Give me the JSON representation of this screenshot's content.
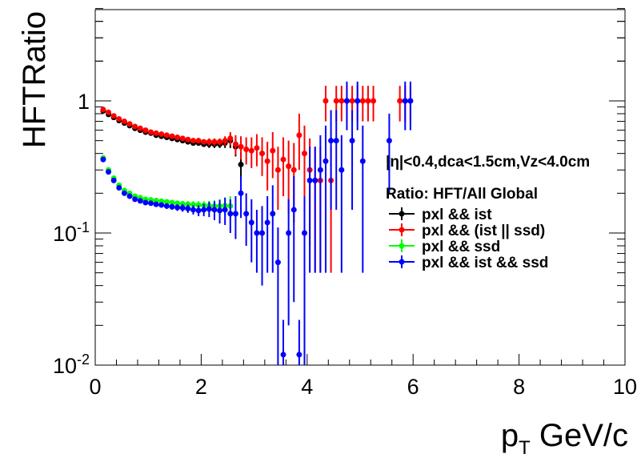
{
  "chart_data": {
    "type": "scatter",
    "title": "",
    "xlabel": "p",
    "xlabel_sub": "T",
    "xlabel_rest": " GeV/c",
    "ylabel": "HFTRatio",
    "xlim": [
      0,
      10
    ],
    "ylim": [
      0.01,
      5
    ],
    "yscale": "log",
    "grid": false,
    "x_ticks": [
      "0",
      "2",
      "4",
      "6",
      "8",
      "10"
    ],
    "y_ticks": [
      {
        "base": "10",
        "exp": "-2",
        "value": 0.01
      },
      {
        "base": "10",
        "exp": "-1",
        "value": 0.1
      },
      {
        "base": "1",
        "exp": "",
        "value": 1
      }
    ],
    "annotation": "|η|<0.4,dca<1.5cm,Vz<4.0cm",
    "legend_title": "Ratio: HFT/All Global",
    "legend_position": "right",
    "series": [
      {
        "name": "pxl && ist",
        "color": "#000000",
        "x": [
          0.15,
          0.25,
          0.35,
          0.45,
          0.55,
          0.65,
          0.75,
          0.85,
          0.95,
          1.05,
          1.15,
          1.25,
          1.35,
          1.45,
          1.55,
          1.65,
          1.75,
          1.85,
          1.95,
          2.05,
          2.15,
          2.25,
          2.35,
          2.45,
          2.55,
          2.65,
          2.75
        ],
        "y": [
          0.84,
          0.79,
          0.75,
          0.71,
          0.68,
          0.65,
          0.62,
          0.6,
          0.58,
          0.57,
          0.55,
          0.54,
          0.53,
          0.52,
          0.51,
          0.5,
          0.49,
          0.48,
          0.48,
          0.47,
          0.47,
          0.47,
          0.47,
          0.48,
          0.5,
          0.45,
          0.33
        ],
        "err": [
          0.02,
          0.02,
          0.02,
          0.02,
          0.02,
          0.02,
          0.02,
          0.02,
          0.02,
          0.02,
          0.02,
          0.02,
          0.02,
          0.02,
          0.02,
          0.02,
          0.02,
          0.02,
          0.02,
          0.02,
          0.03,
          0.03,
          0.03,
          0.04,
          0.06,
          0.07,
          0.08
        ]
      },
      {
        "name": "pxl && (ist || ssd)",
        "color": "#ff0000",
        "x": [
          0.15,
          0.25,
          0.35,
          0.45,
          0.55,
          0.65,
          0.75,
          0.85,
          0.95,
          1.05,
          1.15,
          1.25,
          1.35,
          1.45,
          1.55,
          1.65,
          1.75,
          1.85,
          1.95,
          2.05,
          2.15,
          2.25,
          2.35,
          2.45,
          2.55,
          2.65,
          2.75,
          2.85,
          2.95,
          3.05,
          3.15,
          3.25,
          3.35,
          3.45,
          3.55,
          3.65,
          3.75,
          3.85,
          3.95,
          4.05,
          4.15,
          4.25,
          4.35,
          4.45,
          4.55,
          4.65,
          4.75,
          4.85,
          4.95,
          5.05,
          5.15,
          5.25,
          5.75,
          5.85,
          5.95
        ],
        "y": [
          0.86,
          0.82,
          0.77,
          0.73,
          0.7,
          0.67,
          0.64,
          0.62,
          0.6,
          0.58,
          0.57,
          0.56,
          0.55,
          0.54,
          0.53,
          0.52,
          0.51,
          0.5,
          0.5,
          0.49,
          0.49,
          0.49,
          0.49,
          0.5,
          0.52,
          0.47,
          0.45,
          0.43,
          0.42,
          0.44,
          0.4,
          0.35,
          0.42,
          0.3,
          0.36,
          0.32,
          0.3,
          0.55,
          0.4,
          0.3,
          0.25,
          0.25,
          1.0,
          0.25,
          1.0,
          1.0,
          1.0,
          1.0,
          1.0,
          1.0,
          1.0,
          1.0,
          1.0,
          1.0,
          1.0
        ],
        "err": [
          0.02,
          0.02,
          0.02,
          0.02,
          0.02,
          0.02,
          0.02,
          0.02,
          0.02,
          0.02,
          0.02,
          0.02,
          0.02,
          0.02,
          0.02,
          0.02,
          0.02,
          0.02,
          0.02,
          0.02,
          0.03,
          0.03,
          0.03,
          0.04,
          0.06,
          0.08,
          0.09,
          0.1,
          0.11,
          0.12,
          0.13,
          0.14,
          0.16,
          0.15,
          0.17,
          0.18,
          0.18,
          0.25,
          0.25,
          0.22,
          0.2,
          0.2,
          0.3,
          0.2,
          0.3,
          0.3,
          0.3,
          0.3,
          0.3,
          0.3,
          0.3,
          0.3,
          0.3,
          0.3,
          0.3
        ]
      },
      {
        "name": "pxl && ssd",
        "color": "#00ff00",
        "x": [
          0.15,
          0.25,
          0.35,
          0.45,
          0.55,
          0.65,
          0.75,
          0.85,
          0.95,
          1.05,
          1.15,
          1.25,
          1.35,
          1.45,
          1.55,
          1.65,
          1.75,
          1.85,
          1.95,
          2.05,
          2.15,
          2.25,
          2.35,
          2.45,
          2.55
        ],
        "y": [
          0.37,
          0.3,
          0.26,
          0.23,
          0.21,
          0.2,
          0.19,
          0.185,
          0.18,
          0.178,
          0.176,
          0.174,
          0.172,
          0.17,
          0.168,
          0.166,
          0.165,
          0.164,
          0.163,
          0.162,
          0.161,
          0.16,
          0.16,
          0.161,
          0.16
        ],
        "err": [
          0.015,
          0.01,
          0.01,
          0.008,
          0.008,
          0.007,
          0.007,
          0.007,
          0.007,
          0.007,
          0.007,
          0.007,
          0.007,
          0.008,
          0.008,
          0.009,
          0.01,
          0.01,
          0.011,
          0.012,
          0.014,
          0.016,
          0.02,
          0.025,
          0.03
        ]
      },
      {
        "name": "pxl && ist && ssd",
        "color": "#0000ff",
        "x": [
          0.15,
          0.25,
          0.35,
          0.45,
          0.55,
          0.65,
          0.75,
          0.85,
          0.95,
          1.05,
          1.15,
          1.25,
          1.35,
          1.45,
          1.55,
          1.65,
          1.75,
          1.85,
          1.95,
          2.05,
          2.15,
          2.25,
          2.35,
          2.45,
          2.55,
          2.65,
          2.75,
          2.85,
          2.95,
          3.05,
          3.15,
          3.25,
          3.35,
          3.45,
          3.55,
          3.65,
          3.75,
          3.85,
          3.95,
          4.05,
          4.15,
          4.25,
          4.35,
          4.45,
          4.55,
          4.65,
          4.75,
          4.85,
          4.95,
          5.05,
          5.55,
          5.85,
          5.95
        ],
        "y": [
          0.36,
          0.29,
          0.25,
          0.22,
          0.2,
          0.19,
          0.18,
          0.175,
          0.17,
          0.168,
          0.165,
          0.163,
          0.16,
          0.158,
          0.156,
          0.155,
          0.153,
          0.15,
          0.148,
          0.15,
          0.152,
          0.15,
          0.148,
          0.15,
          0.14,
          0.14,
          0.2,
          0.14,
          0.12,
          0.1,
          0.1,
          0.12,
          0.14,
          0.06,
          0.012,
          0.1,
          0.15,
          0.012,
          0.1,
          0.25,
          0.25,
          0.3,
          0.35,
          0.5,
          0.5,
          0.3,
          1.0,
          0.5,
          1.0,
          0.35,
          0.5,
          1.0,
          1.0
        ],
        "err": [
          0.015,
          0.01,
          0.01,
          0.008,
          0.008,
          0.007,
          0.007,
          0.007,
          0.007,
          0.007,
          0.007,
          0.007,
          0.008,
          0.008,
          0.009,
          0.01,
          0.011,
          0.012,
          0.014,
          0.016,
          0.02,
          0.025,
          0.03,
          0.035,
          0.04,
          0.05,
          0.07,
          0.06,
          0.06,
          0.05,
          0.06,
          0.07,
          0.09,
          0.05,
          0.01,
          0.08,
          0.12,
          0.01,
          0.09,
          0.2,
          0.2,
          0.25,
          0.3,
          0.35,
          0.35,
          0.25,
          0.4,
          0.35,
          0.4,
          0.3,
          0.3,
          0.4,
          0.4
        ]
      }
    ]
  }
}
